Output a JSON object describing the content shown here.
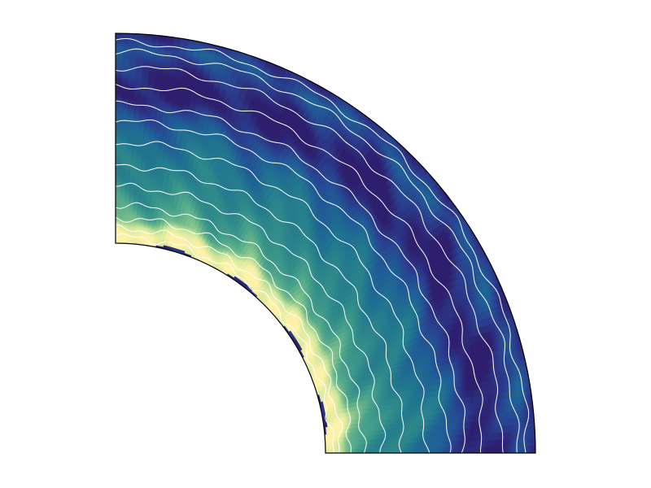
{
  "figure": {
    "type": "quarter-annulus field plot",
    "colors": {
      "background": "#ffffff",
      "outline": "#000000",
      "contour": "#ffffff",
      "colormap": [
        "#2e1f6e",
        "#2a3f8f",
        "#1f5f96",
        "#21768f",
        "#2f8b8a",
        "#4aa38a",
        "#7cc08a",
        "#c9e69a",
        "#fdf2a8"
      ]
    },
    "bands": [
      {
        "r_frac": 0.0,
        "value": 0.95
      },
      {
        "r_frac": 0.04,
        "value": 1.0
      },
      {
        "r_frac": 0.08,
        "value": 0.9
      },
      {
        "r_frac": 0.12,
        "value": 0.7
      },
      {
        "r_frac": 0.18,
        "value": 0.6
      },
      {
        "r_frac": 0.26,
        "value": 0.52
      },
      {
        "r_frac": 0.34,
        "value": 0.45
      },
      {
        "r_frac": 0.44,
        "value": 0.38
      },
      {
        "r_frac": 0.54,
        "value": 0.3
      },
      {
        "r_frac": 0.62,
        "value": 0.18
      },
      {
        "r_frac": 0.7,
        "value": 0.02
      },
      {
        "r_frac": 0.78,
        "value": 0.0
      },
      {
        "r_frac": 0.86,
        "value": 0.1
      },
      {
        "r_frac": 0.93,
        "value": 0.22
      },
      {
        "r_frac": 1.0,
        "value": 0.05
      }
    ],
    "contours": [
      0.03,
      0.07,
      0.12,
      0.18,
      0.27,
      0.37,
      0.48,
      0.58,
      0.66,
      0.75,
      0.84,
      0.91,
      0.96
    ]
  }
}
